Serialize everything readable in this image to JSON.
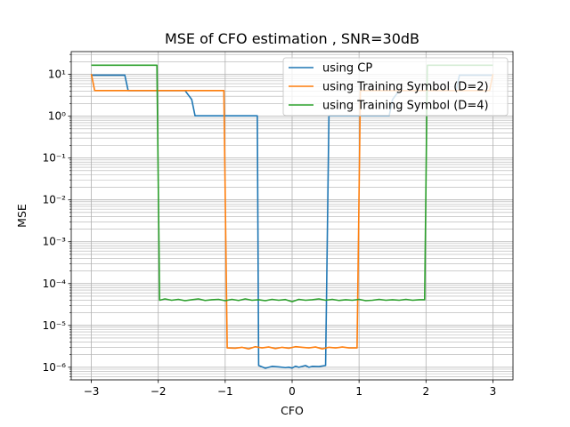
{
  "chart_data": {
    "type": "line",
    "title": "MSE of CFO estimation , SNR=30dB",
    "xlabel": "CFO",
    "ylabel": "MSE",
    "xlim": [
      -3.3,
      3.3
    ],
    "ylim": [
      5e-07,
      35
    ],
    "yscale": "log",
    "grid": "major and minor",
    "legend_position": "top-right",
    "x_ticks": [
      -3,
      -2,
      -1,
      0,
      1,
      2,
      3
    ],
    "x_tick_labels": [
      "−3",
      "−2",
      "−1",
      "0",
      "1",
      "2",
      "3"
    ],
    "y_tick_exponents": [
      -6,
      -5,
      -4,
      -3,
      -2,
      -1,
      0,
      1
    ],
    "series": [
      {
        "name": "using CP",
        "color": "#1f77b4",
        "points": [
          [
            -3.0,
            9.6
          ],
          [
            -2.5,
            9.6
          ],
          [
            -2.45,
            4.1
          ],
          [
            -1.6,
            4.1
          ],
          [
            -1.5,
            2.5
          ],
          [
            -1.45,
            1.02
          ],
          [
            -0.52,
            1.02
          ],
          [
            -0.5,
            1.1e-06
          ],
          [
            -0.4,
            9.5e-07
          ],
          [
            -0.3,
            1.05e-06
          ],
          [
            -0.2,
            1.02e-06
          ],
          [
            -0.1,
            9.8e-07
          ],
          [
            -0.05,
            1e-06
          ],
          [
            0.0,
            9.6e-07
          ],
          [
            0.05,
            1.06e-06
          ],
          [
            0.1,
            1e-06
          ],
          [
            0.2,
            1.1e-06
          ],
          [
            0.25,
            1e-06
          ],
          [
            0.3,
            1.05e-06
          ],
          [
            0.4,
            1.04e-06
          ],
          [
            0.5,
            1.1e-06
          ],
          [
            0.55,
            1.02
          ],
          [
            1.45,
            1.02
          ],
          [
            1.5,
            2.5
          ],
          [
            1.6,
            4.1
          ],
          [
            2.45,
            4.1
          ],
          [
            2.5,
            9.6
          ],
          [
            3.0,
            9.6
          ]
        ]
      },
      {
        "name": "using Training Symbol (D=2)",
        "color": "#ff7f0e",
        "points": [
          [
            -3.0,
            10.2
          ],
          [
            -2.95,
            4.1
          ],
          [
            -1.02,
            4.1
          ],
          [
            -0.97,
            2.9e-06
          ],
          [
            -0.85,
            2.85e-06
          ],
          [
            -0.75,
            3e-06
          ],
          [
            -0.65,
            2.75e-06
          ],
          [
            -0.55,
            3.1e-06
          ],
          [
            -0.45,
            2.9e-06
          ],
          [
            -0.35,
            3.05e-06
          ],
          [
            -0.25,
            2.8e-06
          ],
          [
            -0.15,
            3e-06
          ],
          [
            -0.05,
            2.85e-06
          ],
          [
            0.05,
            3.1e-06
          ],
          [
            0.15,
            3e-06
          ],
          [
            0.25,
            2.9e-06
          ],
          [
            0.35,
            3.05e-06
          ],
          [
            0.45,
            2.75e-06
          ],
          [
            0.55,
            3e-06
          ],
          [
            0.65,
            2.9e-06
          ],
          [
            0.75,
            3.05e-06
          ],
          [
            0.85,
            2.9e-06
          ],
          [
            0.97,
            2.9e-06
          ],
          [
            1.02,
            4.1
          ],
          [
            2.95,
            4.1
          ],
          [
            3.0,
            10.2
          ]
        ]
      },
      {
        "name": "using Training Symbol (D=4)",
        "color": "#2ca02c",
        "points": [
          [
            -3.0,
            16.5
          ],
          [
            -2.02,
            16.5
          ],
          [
            -1.98,
            4e-05
          ],
          [
            -1.9,
            4.3e-05
          ],
          [
            -1.8,
            4e-05
          ],
          [
            -1.7,
            4.2e-05
          ],
          [
            -1.6,
            3.9e-05
          ],
          [
            -1.5,
            4.1e-05
          ],
          [
            -1.4,
            4.3e-05
          ],
          [
            -1.3,
            3.95e-05
          ],
          [
            -1.2,
            4.1e-05
          ],
          [
            -1.1,
            4.2e-05
          ],
          [
            -1.0,
            3.9e-05
          ],
          [
            -0.9,
            4.2e-05
          ],
          [
            -0.8,
            3.95e-05
          ],
          [
            -0.7,
            4.3e-05
          ],
          [
            -0.6,
            4e-05
          ],
          [
            -0.5,
            4.1e-05
          ],
          [
            -0.4,
            3.9e-05
          ],
          [
            -0.3,
            4.2e-05
          ],
          [
            -0.2,
            4e-05
          ],
          [
            -0.1,
            4.15e-05
          ],
          [
            0.0,
            3.7e-05
          ],
          [
            0.1,
            4.2e-05
          ],
          [
            0.2,
            4e-05
          ],
          [
            0.3,
            4.1e-05
          ],
          [
            0.4,
            4.3e-05
          ],
          [
            0.5,
            4e-05
          ],
          [
            0.6,
            4.2e-05
          ],
          [
            0.7,
            3.95e-05
          ],
          [
            0.8,
            4.1e-05
          ],
          [
            0.9,
            4e-05
          ],
          [
            1.0,
            4.2e-05
          ],
          [
            1.1,
            3.9e-05
          ],
          [
            1.2,
            4e-05
          ],
          [
            1.3,
            4.2e-05
          ],
          [
            1.4,
            4e-05
          ],
          [
            1.5,
            4.1e-05
          ],
          [
            1.6,
            4e-05
          ],
          [
            1.7,
            4.2e-05
          ],
          [
            1.8,
            4e-05
          ],
          [
            1.9,
            4.1e-05
          ],
          [
            1.98,
            4.1e-05
          ],
          [
            2.02,
            16.5
          ],
          [
            3.0,
            16.5
          ]
        ]
      }
    ]
  }
}
